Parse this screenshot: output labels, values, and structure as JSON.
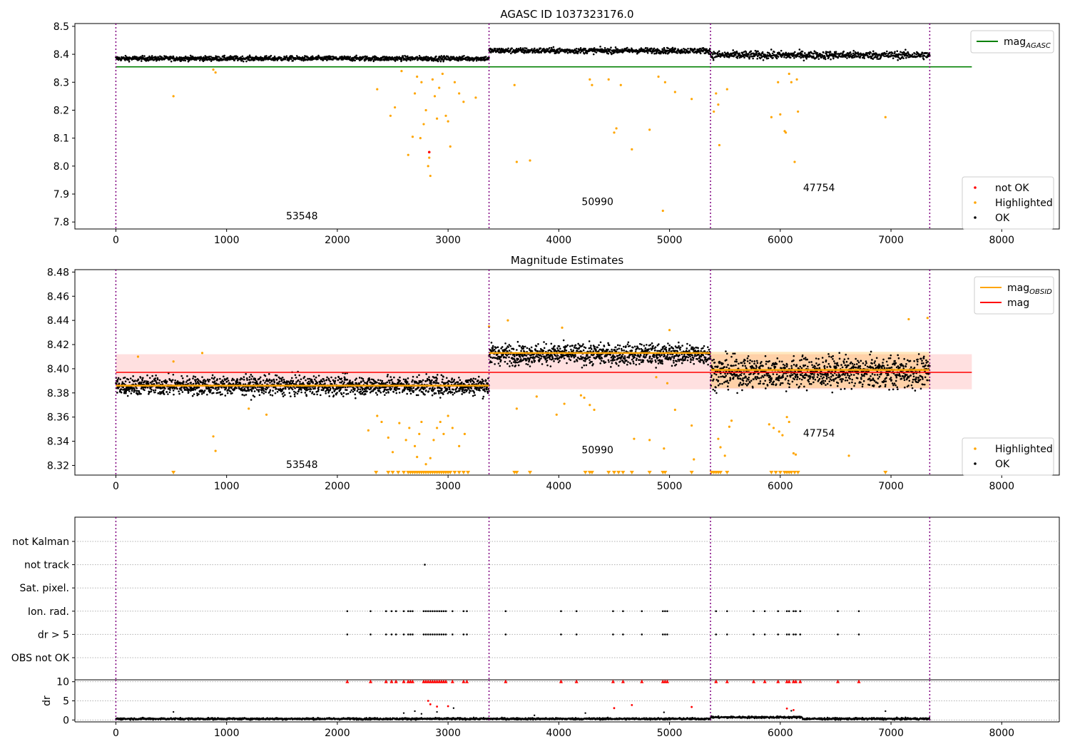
{
  "chart_data": [
    {
      "type": "scatter",
      "title": "AGASC ID 1037323176.0",
      "xlim": [
        -370,
        8520
      ],
      "ylim": [
        7.775,
        8.51
      ],
      "x_ticks": [
        0,
        1000,
        2000,
        3000,
        4000,
        5000,
        6000,
        7000,
        8000
      ],
      "y_ticks": [
        7.8,
        7.9,
        8.0,
        8.1,
        8.2,
        8.3,
        8.4,
        8.5
      ],
      "obsid_boundaries": [
        0,
        3370,
        5370,
        7350
      ],
      "obsid_labels": [
        {
          "text": "53548",
          "x": 1680,
          "y": 7.81
        },
        {
          "text": "50990",
          "x": 4350,
          "y": 7.86
        },
        {
          "text": "47754",
          "x": 6350,
          "y": 7.91
        }
      ],
      "lines": [
        {
          "name": "mag",
          "subscript": "AGASC",
          "y": 8.355,
          "x_range": [
            0,
            7730
          ],
          "color": "#008000"
        }
      ],
      "segments": [
        {
          "x_range": [
            0,
            3370
          ],
          "mean": 8.385,
          "spread": 0.006
        },
        {
          "x_range": [
            3370,
            5370
          ],
          "mean": 8.413,
          "spread": 0.007
        },
        {
          "x_range": [
            5370,
            7350
          ],
          "mean": 8.397,
          "spread": 0.01
        }
      ],
      "highlighted_points": [
        [
          520,
          8.25
        ],
        [
          900,
          8.335
        ],
        [
          880,
          8.345
        ],
        [
          2360,
          8.275
        ],
        [
          2480,
          8.18
        ],
        [
          2520,
          8.21
        ],
        [
          2580,
          8.34
        ],
        [
          2640,
          8.04
        ],
        [
          2680,
          8.105
        ],
        [
          2700,
          8.26
        ],
        [
          2720,
          8.32
        ],
        [
          2750,
          8.1
        ],
        [
          2760,
          8.3
        ],
        [
          2780,
          8.15
        ],
        [
          2800,
          8.2
        ],
        [
          2820,
          8.0
        ],
        [
          2830,
          8.03
        ],
        [
          2840,
          7.965
        ],
        [
          2860,
          8.31
        ],
        [
          2880,
          8.25
        ],
        [
          2900,
          8.17
        ],
        [
          2920,
          8.28
        ],
        [
          2950,
          8.33
        ],
        [
          2980,
          8.18
        ],
        [
          3000,
          8.16
        ],
        [
          3020,
          8.07
        ],
        [
          3060,
          8.3
        ],
        [
          3100,
          8.26
        ],
        [
          3140,
          8.23
        ],
        [
          3250,
          8.245
        ],
        [
          3600,
          8.29
        ],
        [
          3620,
          8.015
        ],
        [
          3740,
          8.02
        ],
        [
          4280,
          8.31
        ],
        [
          4300,
          8.29
        ],
        [
          4450,
          8.31
        ],
        [
          4500,
          8.12
        ],
        [
          4520,
          8.135
        ],
        [
          4560,
          8.29
        ],
        [
          4660,
          8.06
        ],
        [
          4820,
          8.13
        ],
        [
          4900,
          8.32
        ],
        [
          4940,
          7.84
        ],
        [
          4960,
          8.3
        ],
        [
          5050,
          8.265
        ],
        [
          5200,
          8.24
        ],
        [
          5400,
          8.195
        ],
        [
          5420,
          8.26
        ],
        [
          5440,
          8.22
        ],
        [
          5450,
          8.075
        ],
        [
          5520,
          8.275
        ],
        [
          5920,
          8.175
        ],
        [
          5980,
          8.3
        ],
        [
          6000,
          8.185
        ],
        [
          6040,
          8.125
        ],
        [
          6050,
          8.12
        ],
        [
          6080,
          8.33
        ],
        [
          6100,
          8.3
        ],
        [
          6130,
          8.015
        ],
        [
          6150,
          8.31
        ],
        [
          6160,
          8.195
        ],
        [
          6950,
          8.175
        ]
      ],
      "not_ok_points": [
        [
          2830,
          8.05
        ]
      ],
      "legend": {
        "entries": [
          {
            "label": "mag",
            "subscript": "AGASC",
            "color": "#008000"
          }
        ],
        "placement": "upper right"
      },
      "legend2": {
        "entries": [
          {
            "label": "not OK",
            "color": "#ff0000"
          },
          {
            "label": "Highlighted",
            "color": "#ffa500"
          },
          {
            "label": "OK",
            "color": "#000000"
          }
        ],
        "placement": "lower right"
      }
    },
    {
      "type": "scatter",
      "title": "Magnitude Estimates",
      "xlim": [
        -370,
        8520
      ],
      "ylim": [
        8.312,
        8.482
      ],
      "x_ticks": [
        0,
        1000,
        2000,
        3000,
        4000,
        5000,
        6000,
        7000,
        8000
      ],
      "y_ticks": [
        8.32,
        8.34,
        8.36,
        8.38,
        8.4,
        8.42,
        8.44,
        8.46,
        8.48
      ],
      "obsid_boundaries": [
        0,
        3370,
        5370,
        7350
      ],
      "obsid_labels": [
        {
          "text": "53548",
          "x": 1680,
          "y": 8.318
        },
        {
          "text": "50990",
          "x": 4350,
          "y": 8.33
        },
        {
          "text": "47754",
          "x": 6350,
          "y": 8.344
        }
      ],
      "mag": {
        "value": 8.397,
        "band": [
          8.383,
          8.412
        ],
        "x_range": [
          0,
          7730
        ]
      },
      "obsid_mags": [
        {
          "x_range": [
            0,
            3370
          ],
          "value": 8.386
        },
        {
          "x_range": [
            3370,
            5370
          ],
          "value": 8.413
        },
        {
          "x_range": [
            5370,
            7350
          ],
          "value": 8.399,
          "band": [
            8.384,
            8.414
          ]
        }
      ],
      "segments": [
        {
          "x_range": [
            0,
            3370
          ],
          "mean": 8.386,
          "spread": 0.0055
        },
        {
          "x_range": [
            3370,
            5370
          ],
          "mean": 8.412,
          "spread": 0.006
        },
        {
          "x_range": [
            5370,
            7350
          ],
          "mean": 8.397,
          "spread": 0.009
        }
      ],
      "highlighted_points": [
        [
          200,
          8.41
        ],
        [
          520,
          8.406
        ],
        [
          780,
          8.413
        ],
        [
          880,
          8.344
        ],
        [
          900,
          8.332
        ],
        [
          1200,
          8.367
        ],
        [
          1360,
          8.362
        ],
        [
          2280,
          8.349
        ],
        [
          2360,
          8.361
        ],
        [
          2400,
          8.356
        ],
        [
          2460,
          8.343
        ],
        [
          2500,
          8.331
        ],
        [
          2560,
          8.355
        ],
        [
          2620,
          8.341
        ],
        [
          2650,
          8.351
        ],
        [
          2700,
          8.336
        ],
        [
          2720,
          8.327
        ],
        [
          2740,
          8.346
        ],
        [
          2760,
          8.356
        ],
        [
          2800,
          8.321
        ],
        [
          2840,
          8.326
        ],
        [
          2870,
          8.341
        ],
        [
          2900,
          8.351
        ],
        [
          2930,
          8.356
        ],
        [
          2960,
          8.346
        ],
        [
          3000,
          8.361
        ],
        [
          3040,
          8.351
        ],
        [
          3100,
          8.336
        ],
        [
          3150,
          8.346
        ],
        [
          3370,
          8.435
        ],
        [
          3540,
          8.44
        ],
        [
          3620,
          8.367
        ],
        [
          3800,
          8.377
        ],
        [
          3980,
          8.362
        ],
        [
          4030,
          8.434
        ],
        [
          4050,
          8.371
        ],
        [
          4200,
          8.378
        ],
        [
          4230,
          8.376
        ],
        [
          4280,
          8.37
        ],
        [
          4320,
          8.366
        ],
        [
          4680,
          8.342
        ],
        [
          4820,
          8.341
        ],
        [
          4880,
          8.393
        ],
        [
          4950,
          8.334
        ],
        [
          4980,
          8.388
        ],
        [
          5000,
          8.432
        ],
        [
          5050,
          8.366
        ],
        [
          5200,
          8.353
        ],
        [
          5220,
          8.325
        ],
        [
          5440,
          8.342
        ],
        [
          5460,
          8.335
        ],
        [
          5500,
          8.328
        ],
        [
          5540,
          8.352
        ],
        [
          5560,
          8.357
        ],
        [
          5900,
          8.354
        ],
        [
          5940,
          8.351
        ],
        [
          5990,
          8.348
        ],
        [
          6020,
          8.345
        ],
        [
          6060,
          8.36
        ],
        [
          6080,
          8.356
        ],
        [
          6120,
          8.33
        ],
        [
          6140,
          8.329
        ],
        [
          6620,
          8.328
        ],
        [
          7160,
          8.441
        ],
        [
          7330,
          8.442
        ]
      ],
      "floor_markers": [
        520,
        2350,
        2460,
        2500,
        2550,
        2600,
        2640,
        2660,
        2680,
        2700,
        2720,
        2740,
        2760,
        2780,
        2800,
        2820,
        2840,
        2860,
        2880,
        2900,
        2920,
        2940,
        2960,
        2980,
        3000,
        3020,
        3060,
        3100,
        3140,
        3180,
        3600,
        3620,
        3740,
        4240,
        4280,
        4300,
        4450,
        4500,
        4540,
        4580,
        4660,
        4820,
        4940,
        4960,
        5200,
        5380,
        5400,
        5420,
        5440,
        5460,
        5520,
        5920,
        5960,
        6000,
        6040,
        6060,
        6080,
        6100,
        6130,
        6160,
        6950
      ],
      "legend": {
        "entries": [
          {
            "label": "mag",
            "subscript": "OBSID",
            "color": "#ffa500"
          },
          {
            "label": "mag",
            "color": "#ff0000"
          }
        ],
        "placement": "upper right"
      },
      "legend2": {
        "entries": [
          {
            "label": "Highlighted",
            "color": "#ffa500"
          },
          {
            "label": "OK",
            "color": "#000000"
          }
        ],
        "placement": "lower right"
      }
    },
    {
      "type": "scatter",
      "title": "",
      "xlim": [
        -370,
        8520
      ],
      "x_ticks": [
        0,
        1000,
        2000,
        3000,
        4000,
        5000,
        6000,
        7000,
        8000
      ],
      "obsid_boundaries": [
        0,
        3370,
        5370,
        7350
      ],
      "flag_rows": [
        "not Kalman",
        "not track",
        "Sat. pixel.",
        "Ion. rad.",
        "dr > 5",
        "OBS not OK"
      ],
      "flag_points": {
        "not track": [
          2790
        ],
        "Ion. rad.": [
          2090,
          2300,
          2440,
          2490,
          2530,
          2600,
          2640,
          2660,
          2680,
          2780,
          2800,
          2820,
          2840,
          2860,
          2880,
          2900,
          2920,
          2940,
          2960,
          2980,
          3040,
          3140,
          3170,
          3520,
          4020,
          4160,
          4490,
          4580,
          4750,
          4940,
          4960,
          4980,
          5420,
          5520,
          5760,
          5860,
          5980,
          6060,
          6080,
          6120,
          6140,
          6180,
          6520,
          6710
        ],
        "dr > 5": [
          2090,
          2300,
          2440,
          2490,
          2530,
          2600,
          2640,
          2660,
          2680,
          2780,
          2800,
          2820,
          2840,
          2860,
          2880,
          2900,
          2920,
          2940,
          2960,
          2980,
          3040,
          3140,
          3170,
          3520,
          4020,
          4160,
          4490,
          4580,
          4750,
          4940,
          4960,
          4980,
          5420,
          5520,
          5760,
          5860,
          5980,
          6060,
          6080,
          6120,
          6140,
          6180,
          6520,
          6710
        ]
      }
    },
    {
      "type": "scatter",
      "title": "",
      "ylabel": "dr",
      "xlim": [
        -370,
        8520
      ],
      "ylim": [
        -0.5,
        10.5
      ],
      "x_ticks": [
        0,
        1000,
        2000,
        3000,
        4000,
        5000,
        6000,
        7000,
        8000
      ],
      "y_ticks": [
        0,
        5,
        10
      ],
      "obsid_boundaries": [
        0,
        3370,
        5370,
        7350
      ],
      "baseline": 0.3,
      "capped_points": [
        2090,
        2300,
        2440,
        2490,
        2530,
        2600,
        2640,
        2660,
        2680,
        2780,
        2800,
        2820,
        2840,
        2860,
        2880,
        2900,
        2920,
        2940,
        2960,
        2980,
        3040,
        3140,
        3170,
        3520,
        4020,
        4160,
        4490,
        4580,
        4750,
        4940,
        4960,
        4980,
        5420,
        5520,
        5760,
        5860,
        5980,
        6060,
        6080,
        6120,
        6140,
        6180,
        6520,
        6710
      ],
      "red_points": [
        [
          2820,
          5.0
        ],
        [
          2840,
          4.1
        ],
        [
          2900,
          3.5
        ],
        [
          3000,
          3.6
        ],
        [
          4500,
          3.1
        ],
        [
          4660,
          3.9
        ],
        [
          5200,
          3.4
        ],
        [
          6060,
          3.0
        ],
        [
          6120,
          2.6
        ]
      ],
      "scattered_points": [
        [
          520,
          2.1
        ],
        [
          2600,
          1.8
        ],
        [
          2700,
          2.3
        ],
        [
          2760,
          1.6
        ],
        [
          2900,
          2.1
        ],
        [
          3050,
          3.1
        ],
        [
          3780,
          1.2
        ],
        [
          4240,
          1.8
        ],
        [
          4950,
          2.0
        ],
        [
          6100,
          2.4
        ],
        [
          6950,
          2.3
        ]
      ]
    }
  ]
}
